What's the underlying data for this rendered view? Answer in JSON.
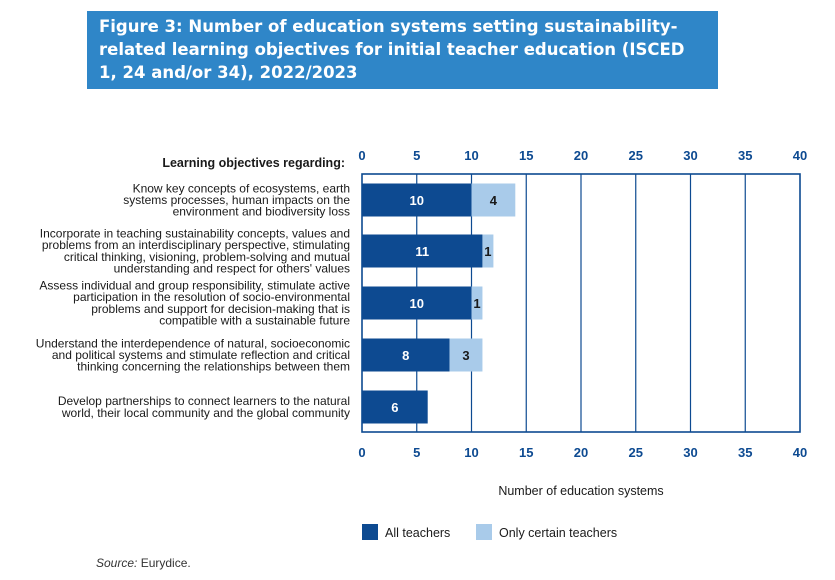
{
  "figure": {
    "title": "Figure 3: Number of education systems setting sustainability-related learning objectives for initial teacher education (ISCED 1, 24 and/or 34), 2022/2023"
  },
  "source": {
    "label": "Source:",
    "text": " Eurydice."
  },
  "colors": {
    "all_teachers": "#0d4a91",
    "certain_teachers": "#a9cbea",
    "axis": "#0d4a91",
    "title_bg": "#2f86c8"
  },
  "chart_data": {
    "type": "bar",
    "orientation": "horizontal",
    "stacked": true,
    "title": "Figure 3: Number of education systems setting sustainability-related learning objectives for initial teacher education (ISCED 1, 24 and/or 34), 2022/2023",
    "category_header": "Learning objectives regarding:",
    "xlabel": "Number of education systems",
    "xlim": [
      0,
      40
    ],
    "xticks": [
      0,
      5,
      10,
      15,
      20,
      25,
      30,
      35,
      40
    ],
    "grid": true,
    "legend_position": "bottom",
    "categories": [
      [
        "Know key concepts of ecosystems, earth",
        "systems processes, human impacts on the",
        "environment and biodiversity loss"
      ],
      [
        "Incorporate in teaching sustainability concepts, values and",
        "problems from an interdisciplinary perspective, stimulating",
        "critical thinking, visioning, problem-solving and mutual",
        "understanding and respect for others' values"
      ],
      [
        "Assess individual and group responsibility, stimulate active",
        "participation in the resolution of socio-environmental",
        "problems and support for decision-making that is",
        "compatible with a sustainable future"
      ],
      [
        "Understand the interdependence of natural, socioeconomic",
        "and political systems and stimulate reflection and critical",
        "thinking concerning the relationships between them"
      ],
      [
        "Develop partnerships to connect learners to the natural",
        "world, their local community and the global community"
      ]
    ],
    "series": [
      {
        "name": "All teachers",
        "values": [
          10,
          11,
          10,
          8,
          6
        ],
        "labels": [
          "10",
          "11",
          "10",
          "8",
          "6"
        ]
      },
      {
        "name": "Only certain teachers",
        "values": [
          4,
          1,
          1,
          3,
          0
        ],
        "labels": [
          "4",
          "1",
          "1",
          "3",
          ""
        ]
      }
    ]
  }
}
